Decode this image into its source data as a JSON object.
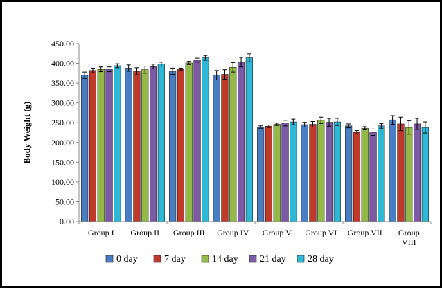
{
  "chart_data": {
    "type": "bar",
    "title": "",
    "xlabel": "",
    "ylabel": "Body Weight (g)",
    "ylim": [
      0,
      450
    ],
    "ytick_step": 50,
    "ytick_decimals": 2,
    "grid": false,
    "legend_position": "bottom",
    "error_bars": true,
    "categories": [
      [
        "Group I"
      ],
      [
        "Group II"
      ],
      [
        "Group III"
      ],
      [
        "Group IV"
      ],
      [
        "Group V"
      ],
      [
        "Group VI"
      ],
      [
        "Group VII"
      ],
      [
        "Group",
        "VIII"
      ]
    ],
    "series": [
      {
        "name": "0 day",
        "color": "#4a7ec4",
        "values": [
          370,
          388,
          380,
          370,
          239,
          245,
          242,
          257
        ],
        "errors": [
          8,
          8,
          8,
          12,
          3,
          6,
          5,
          11
        ]
      },
      {
        "name": "7 day",
        "color": "#c0392b",
        "values": [
          382,
          380,
          385,
          372,
          241,
          246,
          226,
          247
        ],
        "errors": [
          6,
          9,
          3,
          12,
          3,
          7,
          4,
          17
        ]
      },
      {
        "name": "14 day",
        "color": "#94b84a",
        "values": [
          385,
          384,
          401,
          390,
          246,
          256,
          236,
          238
        ],
        "errors": [
          6,
          9,
          4,
          12,
          3,
          8,
          4,
          17
        ]
      },
      {
        "name": "21 day",
        "color": "#7b5aa6",
        "values": [
          385,
          392,
          408,
          403,
          249,
          251,
          226,
          247
        ],
        "errors": [
          6,
          6,
          5,
          12,
          7,
          10,
          8,
          14
        ]
      },
      {
        "name": "28 day",
        "color": "#2fb7d6",
        "values": [
          394,
          398,
          414,
          414,
          252,
          252,
          242,
          238
        ],
        "errors": [
          5,
          5,
          6,
          10,
          7,
          9,
          6,
          14
        ]
      }
    ]
  }
}
